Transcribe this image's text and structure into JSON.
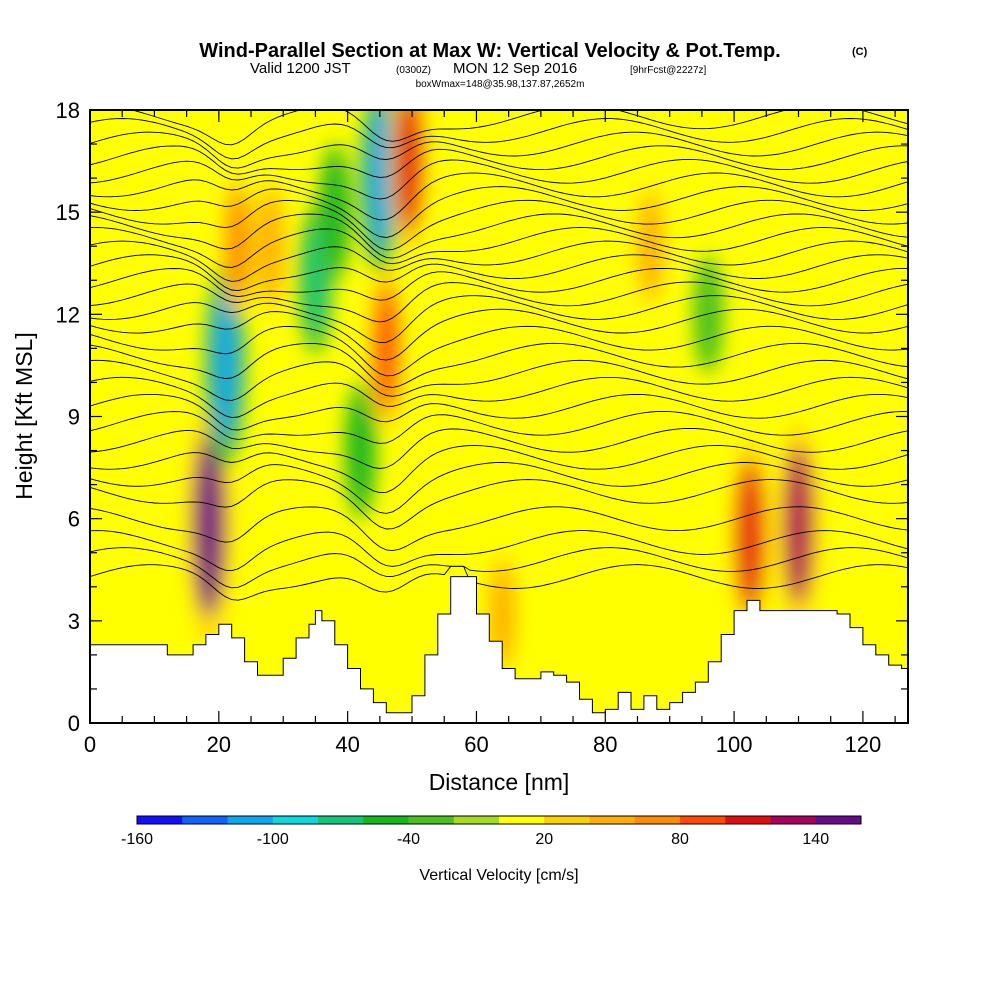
{
  "title": {
    "main": "Wind-Parallel Section at Max W: Vertical Velocity & Pot.Temp.",
    "copyright": "(C)",
    "valid_prefix": "Valid 1200 JST",
    "valid_utc": "(0300Z)",
    "valid_date": "MON 12 Sep 2016",
    "forecast": "[9hrFcst@2227z]",
    "box_info": "boxWmax=148@35.98,137.87,2652m"
  },
  "chart_data": {
    "type": "heatmap",
    "xlabel": "Distance [nm]",
    "ylabel": "Height [Kft MSL]",
    "xlim": [
      0,
      127
    ],
    "ylim": [
      0,
      18
    ],
    "xticks": [
      0,
      20,
      40,
      60,
      80,
      100,
      120
    ],
    "yticks": [
      0,
      3,
      6,
      9,
      12,
      15,
      18
    ],
    "xminor_step": 5,
    "yminor_step": 1,
    "colorbar": {
      "label": "Vertical Velocity [cm/s]",
      "min": -160,
      "max": 160,
      "step": 20,
      "tick_values": [
        -160,
        -100,
        -40,
        20,
        80,
        140
      ],
      "colors": [
        "#1010ff",
        "#0f62ff",
        "#0aa6f0",
        "#08d8e0",
        "#10c87a",
        "#12b81c",
        "#4cc01c",
        "#a4dc1c",
        "#ffff00",
        "#ffd000",
        "#ffae00",
        "#ff8a00",
        "#ff4a00",
        "#e20e0e",
        "#a8005c",
        "#6a0a8a"
      ]
    },
    "terrain_profile": {
      "distance_nm": [
        0,
        5,
        10,
        12,
        14,
        16,
        18,
        20,
        22,
        24,
        26,
        28,
        30,
        32,
        34,
        35,
        36,
        38,
        40,
        42,
        44,
        46,
        48,
        50,
        52,
        54,
        56,
        58,
        60,
        62,
        64,
        66,
        68,
        70,
        72,
        74,
        76,
        78,
        80,
        82,
        84,
        86,
        88,
        90,
        92,
        94,
        96,
        98,
        100,
        102,
        104,
        106,
        108,
        110,
        112,
        114,
        116,
        118,
        120,
        122,
        124,
        126,
        127
      ],
      "height_kft": [
        2.3,
        2.3,
        2.3,
        2.0,
        2.0,
        2.3,
        2.6,
        2.9,
        2.5,
        1.8,
        1.4,
        1.4,
        1.9,
        2.5,
        2.9,
        3.3,
        3.0,
        2.3,
        1.6,
        1.0,
        0.6,
        0.3,
        0.3,
        0.8,
        2.0,
        3.2,
        4.3,
        4.3,
        3.2,
        2.4,
        1.6,
        1.3,
        1.3,
        1.5,
        1.4,
        1.2,
        0.7,
        0.3,
        0.4,
        0.9,
        0.4,
        0.8,
        0.4,
        0.6,
        0.9,
        1.2,
        1.8,
        2.6,
        3.3,
        3.6,
        3.3,
        3.3,
        3.3,
        3.3,
        3.3,
        3.3,
        3.2,
        2.8,
        2.3,
        2.0,
        1.7,
        1.6,
        1.4
      ]
    },
    "velocity_features": [
      {
        "x": 18.5,
        "y": 5.8,
        "value": 150
      },
      {
        "x": 21,
        "y": 10.5,
        "value": -120
      },
      {
        "x": 23,
        "y": 14,
        "value": 60
      },
      {
        "x": 28,
        "y": 14,
        "value": 50
      },
      {
        "x": 35,
        "y": 13,
        "value": -70
      },
      {
        "x": 38,
        "y": 15,
        "value": -60
      },
      {
        "x": 42,
        "y": 8,
        "value": -60
      },
      {
        "x": 45,
        "y": 16,
        "value": -110
      },
      {
        "x": 46,
        "y": 11,
        "value": 80
      },
      {
        "x": 49.5,
        "y": 16.5,
        "value": 100
      },
      {
        "x": 64,
        "y": 3.2,
        "value": 40
      },
      {
        "x": 87,
        "y": 14,
        "value": 40
      },
      {
        "x": 102.5,
        "y": 5.5,
        "value": 110
      },
      {
        "x": 110,
        "y": 5.8,
        "value": 120
      },
      {
        "x": 96,
        "y": 12,
        "value": -40
      }
    ],
    "potential_temperature": {
      "levels_kft": [
        4.3,
        4.8,
        5.3,
        6.0,
        6.8,
        7.3,
        7.8,
        8.3,
        8.8,
        9.3,
        9.8,
        10.3,
        10.8,
        11.3,
        11.8,
        12.2,
        12.6,
        13.0,
        13.4,
        13.8,
        14.2,
        14.6,
        15.0,
        15.4,
        15.8,
        16.2,
        16.6,
        17.0,
        17.4,
        17.8
      ]
    }
  }
}
